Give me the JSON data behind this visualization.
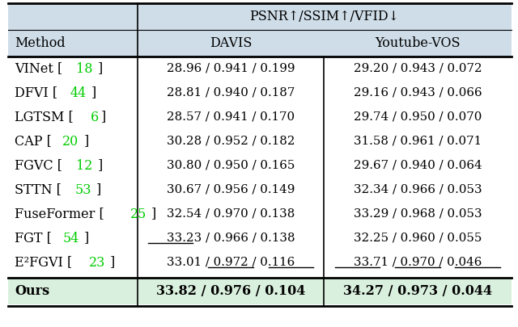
{
  "header_top": "PSNR↑/SSIM↑/VFID↓",
  "col_headers": [
    "Method",
    "DAVIS",
    "Youtube-VOS"
  ],
  "rows": [
    {
      "method": "VINet",
      "ref": "18",
      "davis": "28.96 / 0.941 / 0.199",
      "yvos": "29.20 / 0.943 / 0.072",
      "ul_davis": [],
      "ul_yvos": []
    },
    {
      "method": "DFVI",
      "ref": "44",
      "davis": "28.81 / 0.940 / 0.187",
      "yvos": "29.16 / 0.943 / 0.066",
      "ul_davis": [],
      "ul_yvos": []
    },
    {
      "method": "LGTSM",
      "ref": "6",
      "davis": "28.57 / 0.941 / 0.170",
      "yvos": "29.74 / 0.950 / 0.070",
      "ul_davis": [],
      "ul_yvos": []
    },
    {
      "method": "CAP",
      "ref": "20",
      "davis": "30.28 / 0.952 / 0.182",
      "yvos": "31.58 / 0.961 / 0.071",
      "ul_davis": [],
      "ul_yvos": []
    },
    {
      "method": "FGVC",
      "ref": "12",
      "davis": "30.80 / 0.950 / 0.165",
      "yvos": "29.67 / 0.940 / 0.064",
      "ul_davis": [],
      "ul_yvos": []
    },
    {
      "method": "STTN",
      "ref": "53",
      "davis": "30.67 / 0.956 / 0.149",
      "yvos": "32.34 / 0.966 / 0.053",
      "ul_davis": [],
      "ul_yvos": []
    },
    {
      "method": "FuseFormer",
      "ref": "25",
      "davis": "32.54 / 0.970 / 0.138",
      "yvos": "33.29 / 0.968 / 0.053",
      "ul_davis": [],
      "ul_yvos": []
    },
    {
      "method": "FGT",
      "ref": "54",
      "davis": "33.23 / 0.966 / 0.138",
      "yvos": "32.25 / 0.960 / 0.055",
      "ul_davis": [
        0
      ],
      "ul_yvos": []
    },
    {
      "method": "E²FGVI",
      "ref": "23",
      "davis": "33.01 / 0.972 / 0.116",
      "yvos": "33.71 / 0.970 / 0.046",
      "ul_davis": [
        1,
        2
      ],
      "ul_yvos": [
        0,
        1,
        2
      ]
    }
  ],
  "ours": {
    "method": "Ours",
    "davis": "33.82 / 0.976 / 0.104",
    "yvos": "34.27 / 0.973 / 0.044"
  },
  "header_bg": "#cfdde8",
  "ours_bg": "#daf0de",
  "body_bg": "#ffffff",
  "green_color": "#00cc00",
  "text_color": "#000000",
  "fig_w": 6.4,
  "fig_h": 4.05,
  "dpi": 100
}
